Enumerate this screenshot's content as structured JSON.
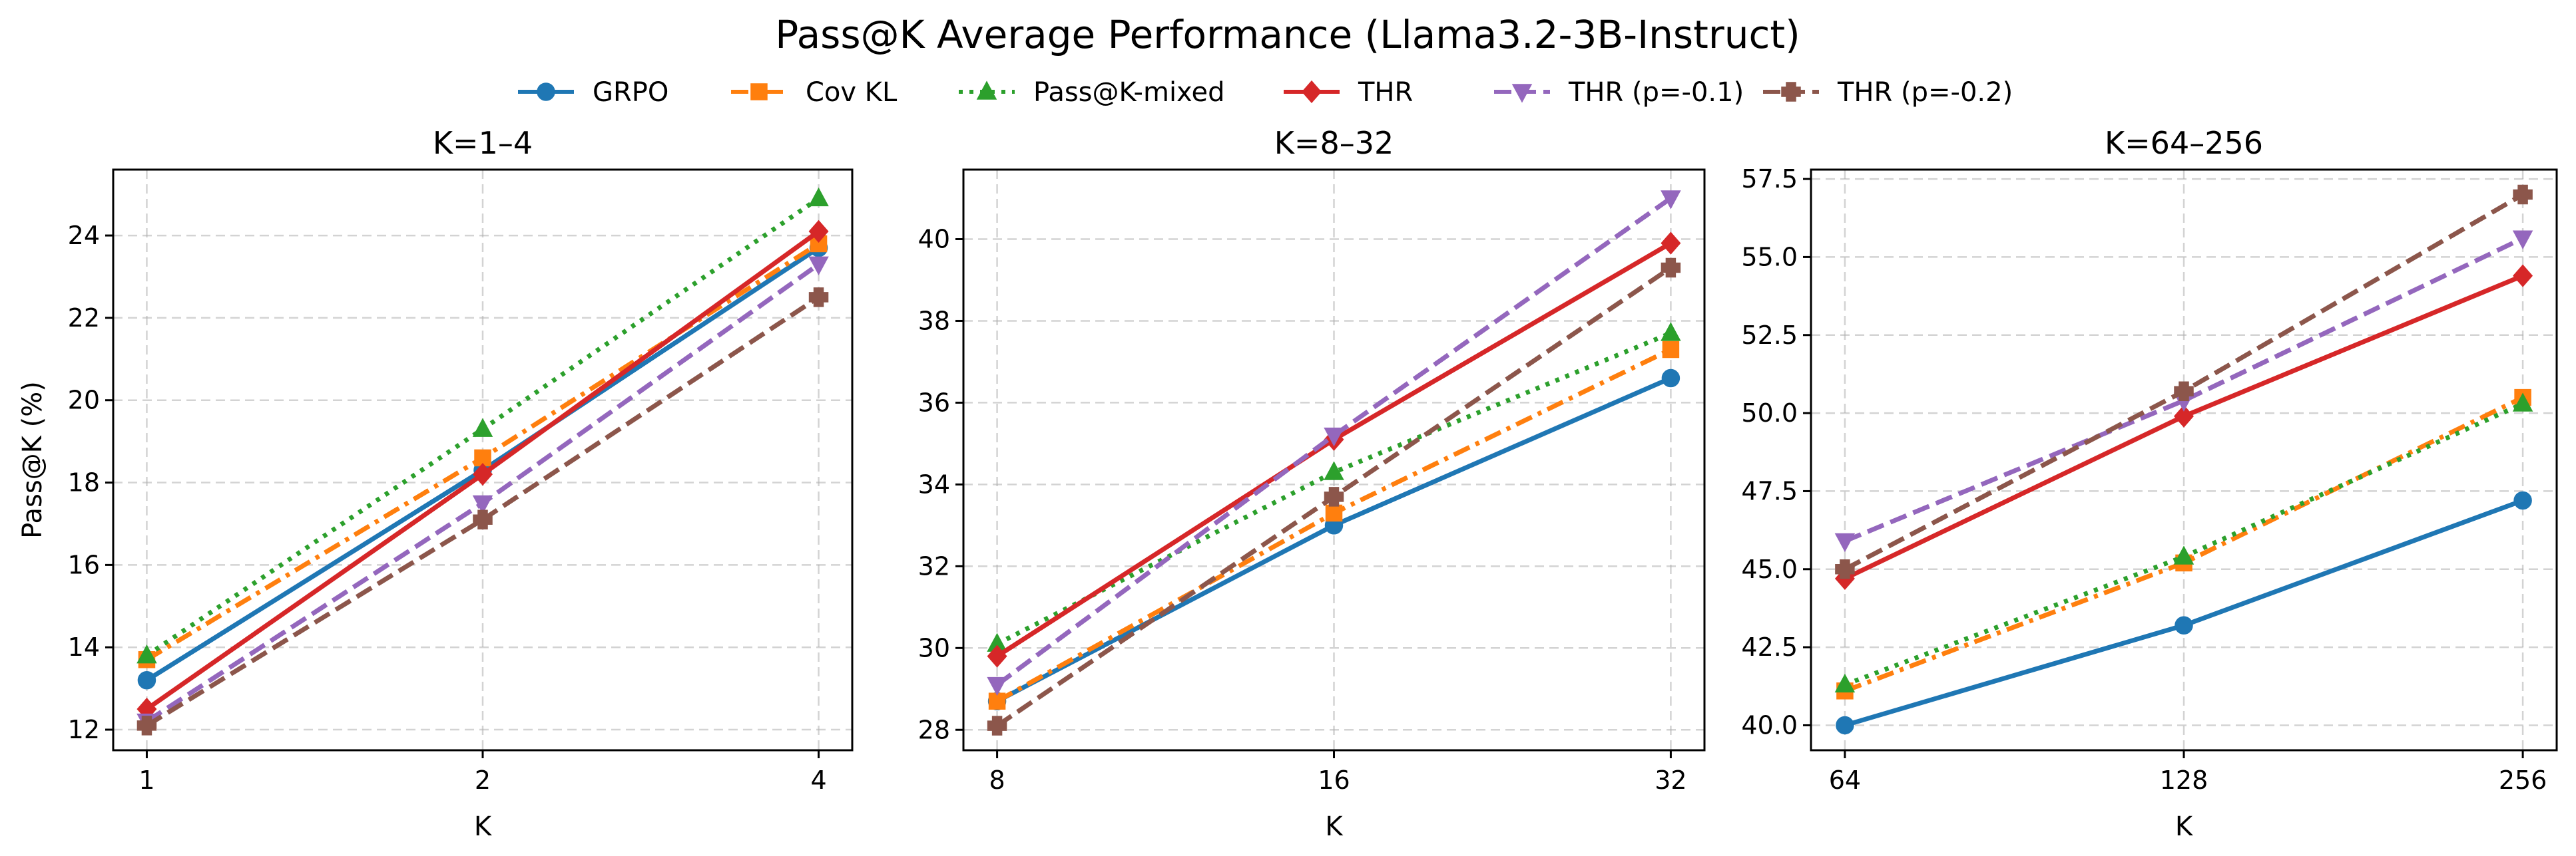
{
  "chart_data": {
    "title": "Pass@K Average Performance (Llama3.2-3B-Instruct)",
    "legend_position": "top-center",
    "series_styles": [
      {
        "name": "GRPO",
        "color": "#1f77b4",
        "dash": "solid",
        "marker": "circle"
      },
      {
        "name": "Cov KL",
        "color": "#ff7f0e",
        "dash": "dashdot",
        "marker": "square"
      },
      {
        "name": "Pass@K-mixed",
        "color": "#2ca02c",
        "dash": "dotted",
        "marker": "triangle-up"
      },
      {
        "name": "THR",
        "color": "#d62728",
        "dash": "solid",
        "marker": "diamond"
      },
      {
        "name": "THR (p=-0.1)",
        "color": "#9467bd",
        "dash": "dashed",
        "marker": "triangle-down"
      },
      {
        "name": "THR (p=-0.2)",
        "color": "#8c564b",
        "dash": "dashed",
        "marker": "plus"
      }
    ],
    "panels": [
      {
        "type": "line",
        "title": "K=1–4",
        "xlabel": "K",
        "ylabel": "Pass@K (%)",
        "x": [
          1,
          2,
          4
        ],
        "x_tick_labels": [
          "1",
          "2",
          "4"
        ],
        "ylim": [
          11.5,
          25.6
        ],
        "y_ticks": [
          12,
          14,
          16,
          18,
          20,
          22,
          24
        ],
        "y_tick_labels": [
          "12",
          "14",
          "16",
          "18",
          "20",
          "22",
          "24"
        ],
        "grid": true,
        "series": [
          {
            "name": "GRPO",
            "values": [
              13.2,
              18.3,
              23.7
            ]
          },
          {
            "name": "Cov KL",
            "values": [
              13.7,
              18.6,
              23.8
            ]
          },
          {
            "name": "Pass@K-mixed",
            "values": [
              13.8,
              19.3,
              24.9
            ]
          },
          {
            "name": "THR",
            "values": [
              12.5,
              18.2,
              24.1
            ]
          },
          {
            "name": "THR (p=-0.1)",
            "values": [
              12.2,
              17.5,
              23.3
            ]
          },
          {
            "name": "THR (p=-0.2)",
            "values": [
              12.1,
              17.1,
              22.5
            ]
          }
        ]
      },
      {
        "type": "line",
        "title": "K=8–32",
        "xlabel": "K",
        "ylabel": "",
        "x": [
          8,
          16,
          32
        ],
        "x_tick_labels": [
          "8",
          "16",
          "32"
        ],
        "ylim": [
          27.5,
          41.7
        ],
        "y_ticks": [
          28,
          30,
          32,
          34,
          36,
          38,
          40
        ],
        "y_tick_labels": [
          "28",
          "30",
          "32",
          "34",
          "36",
          "38",
          "40"
        ],
        "grid": true,
        "series": [
          {
            "name": "GRPO",
            "values": [
              28.7,
              33.0,
              36.6
            ]
          },
          {
            "name": "Cov KL",
            "values": [
              28.7,
              33.3,
              37.3
            ]
          },
          {
            "name": "Pass@K-mixed",
            "values": [
              30.1,
              34.3,
              37.7
            ]
          },
          {
            "name": "THR",
            "values": [
              29.8,
              35.1,
              39.9
            ]
          },
          {
            "name": "THR (p=-0.1)",
            "values": [
              29.1,
              35.2,
              41.0
            ]
          },
          {
            "name": "THR (p=-0.2)",
            "values": [
              28.1,
              33.7,
              39.3
            ]
          }
        ]
      },
      {
        "type": "line",
        "title": "K=64–256",
        "xlabel": "K",
        "ylabel": "",
        "x": [
          64,
          128,
          256
        ],
        "x_tick_labels": [
          "64",
          "128",
          "256"
        ],
        "ylim": [
          39.2,
          57.8
        ],
        "y_ticks": [
          40.0,
          42.5,
          45.0,
          47.5,
          50.0,
          52.5,
          55.0,
          57.5
        ],
        "y_tick_labels": [
          "40.0",
          "42.5",
          "45.0",
          "47.5",
          "50.0",
          "52.5",
          "55.0",
          "57.5"
        ],
        "grid": true,
        "series": [
          {
            "name": "GRPO",
            "values": [
              40.0,
              43.2,
              47.2
            ]
          },
          {
            "name": "Cov KL",
            "values": [
              41.1,
              45.2,
              50.5
            ]
          },
          {
            "name": "Pass@K-mixed",
            "values": [
              41.3,
              45.4,
              50.3
            ]
          },
          {
            "name": "THR",
            "values": [
              44.7,
              49.9,
              54.4
            ]
          },
          {
            "name": "THR (p=-0.1)",
            "values": [
              45.9,
              50.4,
              55.6
            ]
          },
          {
            "name": "THR (p=-0.2)",
            "values": [
              45.0,
              50.7,
              57.0
            ]
          }
        ]
      }
    ]
  }
}
